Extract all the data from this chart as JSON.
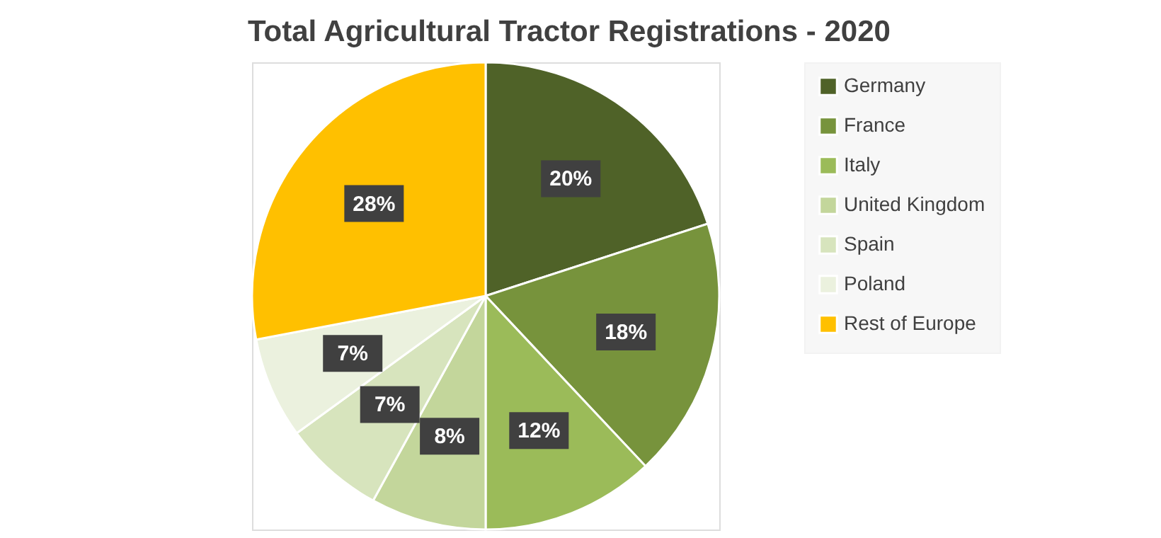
{
  "chart_data": {
    "type": "pie",
    "title": "Total Agricultural Tractor Registrations - 2020",
    "categories": [
      "Germany",
      "France",
      "Italy",
      "United Kingdom",
      "Spain",
      "Poland",
      "Rest of Europe"
    ],
    "values": [
      20,
      18,
      12,
      8,
      7,
      7,
      28
    ],
    "colors": [
      "#4f6228",
      "#77933c",
      "#9bbb59",
      "#c3d69b",
      "#d7e4bd",
      "#ebf1de",
      "#ffc000"
    ],
    "value_labels": [
      "20%",
      "18%",
      "12%",
      "8%",
      "7%",
      "7%",
      "28%"
    ],
    "legend": "right"
  }
}
